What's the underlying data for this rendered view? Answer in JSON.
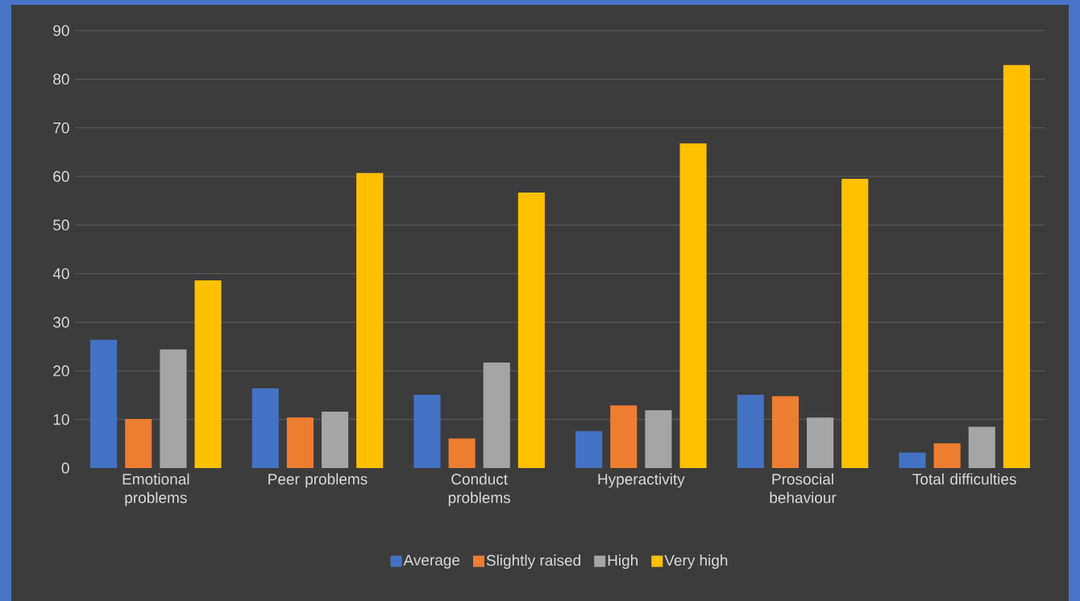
{
  "chart_data": {
    "type": "bar",
    "categories": [
      "Emotional problems",
      "Peer problems",
      "Conduct problems",
      "Hyperactivity",
      "Prosocial behaviour",
      "Total difficulties"
    ],
    "series": [
      {
        "name": "Average",
        "color": "#4472c4",
        "values": [
          26.4,
          16.4,
          15.1,
          7.6,
          15.1,
          3.2
        ]
      },
      {
        "name": "Slightly raised",
        "color": "#ed7d31",
        "values": [
          10.1,
          10.4,
          6.1,
          12.9,
          14.8,
          5.1
        ]
      },
      {
        "name": "High",
        "color": "#a5a5a5",
        "values": [
          24.4,
          11.6,
          21.7,
          11.9,
          10.4,
          8.5
        ]
      },
      {
        "name": "Very high",
        "color": "#ffc000",
        "values": [
          38.6,
          60.7,
          56.7,
          66.8,
          59.5,
          82.9
        ]
      }
    ],
    "ylim": [
      0,
      90
    ],
    "yticks": [
      0,
      10,
      20,
      30,
      40,
      50,
      60,
      70,
      80,
      90
    ],
    "grid": "y",
    "legend": "bottom"
  }
}
